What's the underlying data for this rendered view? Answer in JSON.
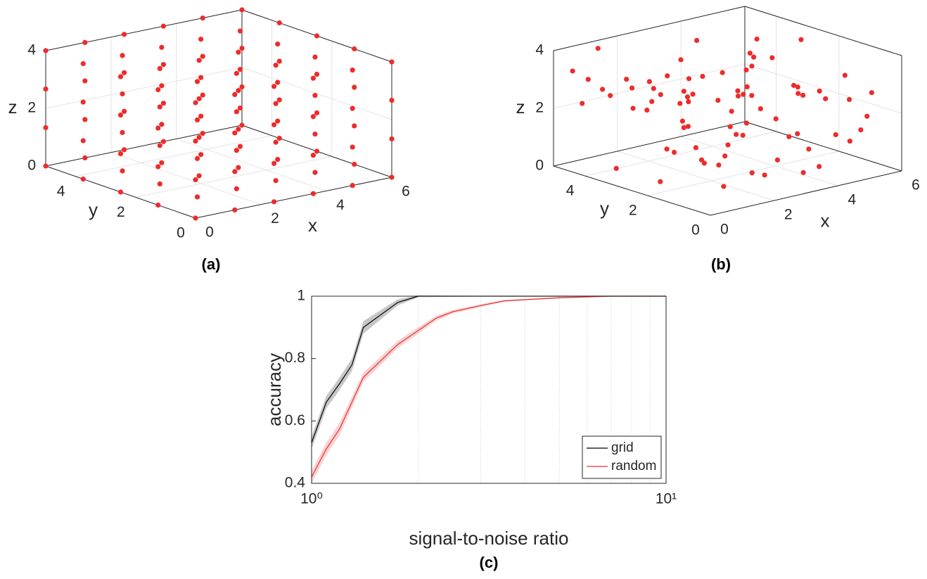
{
  "chart_data": [
    {
      "type": "scatter3d",
      "caption": "(a)",
      "xlabel": "x",
      "ylabel": "y",
      "zlabel": "z",
      "color": "#ee2b2b",
      "xlim": [
        0,
        6
      ],
      "ylim": [
        0,
        5
      ],
      "zlim": [
        0,
        4
      ],
      "xticks": [
        0,
        2,
        4,
        6
      ],
      "yticks": [
        0,
        2,
        4
      ],
      "zticks": [
        0,
        2,
        4
      ],
      "grid": true,
      "x": [
        0,
        0,
        0,
        0,
        0,
        0,
        0,
        0,
        0,
        0,
        0,
        0,
        0,
        0,
        0,
        0,
        0,
        0,
        0,
        0,
        1.2,
        1.2,
        1.2,
        1.2,
        1.2,
        1.2,
        1.2,
        1.2,
        1.2,
        1.2,
        1.2,
        1.2,
        1.2,
        1.2,
        1.2,
        1.2,
        1.2,
        1.2,
        1.2,
        1.2,
        2.4,
        2.4,
        2.4,
        2.4,
        2.4,
        2.4,
        2.4,
        2.4,
        2.4,
        2.4,
        2.4,
        2.4,
        2.4,
        2.4,
        2.4,
        2.4,
        2.4,
        2.4,
        2.4,
        2.4,
        3.6,
        3.6,
        3.6,
        3.6,
        3.6,
        3.6,
        3.6,
        3.6,
        3.6,
        3.6,
        3.6,
        3.6,
        3.6,
        3.6,
        3.6,
        3.6,
        3.6,
        3.6,
        3.6,
        3.6,
        4.8,
        4.8,
        4.8,
        4.8,
        4.8,
        4.8,
        4.8,
        4.8,
        4.8,
        4.8,
        4.8,
        4.8,
        4.8,
        4.8,
        4.8,
        4.8,
        4.8,
        4.8,
        4.8,
        4.8,
        6,
        6,
        6,
        6,
        6,
        6,
        6,
        6,
        6,
        6,
        6,
        6,
        6,
        6,
        6,
        6,
        6,
        6,
        6,
        6
      ],
      "y": [
        0,
        0,
        0,
        0,
        1.25,
        1.25,
        1.25,
        1.25,
        2.5,
        2.5,
        2.5,
        2.5,
        3.75,
        3.75,
        3.75,
        3.75,
        5,
        5,
        5,
        5,
        0,
        0,
        0,
        0,
        1.25,
        1.25,
        1.25,
        1.25,
        2.5,
        2.5,
        2.5,
        2.5,
        3.75,
        3.75,
        3.75,
        3.75,
        5,
        5,
        5,
        5,
        0,
        0,
        0,
        0,
        1.25,
        1.25,
        1.25,
        1.25,
        2.5,
        2.5,
        2.5,
        2.5,
        3.75,
        3.75,
        3.75,
        3.75,
        5,
        5,
        5,
        5,
        0,
        0,
        0,
        0,
        1.25,
        1.25,
        1.25,
        1.25,
        2.5,
        2.5,
        2.5,
        2.5,
        3.75,
        3.75,
        3.75,
        3.75,
        5,
        5,
        5,
        5,
        0,
        0,
        0,
        0,
        1.25,
        1.25,
        1.25,
        1.25,
        2.5,
        2.5,
        2.5,
        2.5,
        3.75,
        3.75,
        3.75,
        3.75,
        5,
        5,
        5,
        5,
        0,
        0,
        0,
        0,
        1.25,
        1.25,
        1.25,
        1.25,
        2.5,
        2.5,
        2.5,
        2.5,
        3.75,
        3.75,
        3.75,
        3.75,
        5,
        5,
        5,
        5
      ],
      "z": [
        0,
        1.33,
        2.67,
        4,
        0,
        1.33,
        2.67,
        4,
        0,
        1.33,
        2.67,
        4,
        0,
        1.33,
        2.67,
        4,
        0,
        1.33,
        2.67,
        4,
        0,
        1.33,
        2.67,
        4,
        0,
        1.33,
        2.67,
        4,
        0,
        1.33,
        2.67,
        4,
        0,
        1.33,
        2.67,
        4,
        0,
        1.33,
        2.67,
        4,
        0,
        1.33,
        2.67,
        4,
        0,
        1.33,
        2.67,
        4,
        0,
        1.33,
        2.67,
        4,
        0,
        1.33,
        2.67,
        4,
        0,
        1.33,
        2.67,
        4,
        0,
        1.33,
        2.67,
        4,
        0,
        1.33,
        2.67,
        4,
        0,
        1.33,
        2.67,
        4,
        0,
        1.33,
        2.67,
        4,
        0,
        1.33,
        2.67,
        4,
        0,
        1.33,
        2.67,
        4,
        0,
        1.33,
        2.67,
        4,
        0,
        1.33,
        2.67,
        4,
        0,
        1.33,
        2.67,
        4,
        0,
        1.33,
        2.67,
        4,
        0,
        1.33,
        2.67,
        4,
        0,
        1.33,
        2.67,
        4,
        0,
        1.33,
        2.67,
        4,
        0,
        1.33,
        2.67,
        4,
        0,
        1.33,
        2.67,
        4
      ]
    },
    {
      "type": "scatter3d",
      "caption": "(b)",
      "xlabel": "x",
      "ylabel": "y",
      "zlabel": "z",
      "color": "#ee2b2b",
      "xlim": [
        0,
        6
      ],
      "ylim": [
        0,
        5
      ],
      "zlim": [
        0,
        4
      ],
      "xticks": [
        0,
        2,
        4,
        6
      ],
      "yticks": [
        0,
        2,
        4
      ],
      "zticks": [
        0,
        2,
        4
      ],
      "grid": true,
      "x": [
        0.3,
        1.2,
        2.5,
        4.1,
        5.6,
        0.8,
        3.3,
        4.9,
        1.7,
        2.9,
        5.2,
        0.1,
        3.8,
        4.4,
        1.1,
        2.2,
        5.9,
        0.6,
        3.1,
        4.7,
        1.9,
        2.7,
        5.4,
        0.4,
        3.6,
        4.2,
        1.4,
        2.0,
        5.7,
        0.9,
        3.4,
        4.8,
        1.6,
        2.4,
        5.1,
        0.2,
        3.9,
        4.5,
        1.3,
        2.8,
        5.5,
        0.7,
        3.2,
        4.0,
        1.8,
        2.6,
        5.8,
        0.5,
        3.7,
        4.3,
        1.0,
        2.1,
        5.3,
        0.0,
        3.5,
        4.6,
        1.5,
        2.3,
        5.0,
        0.85,
        3.05,
        4.95,
        1.25,
        2.55,
        5.65,
        0.35,
        3.75,
        4.15,
        1.75,
        2.95,
        5.25,
        0.65,
        3.45,
        4.35,
        1.05,
        2.45,
        5.95,
        0.45,
        3.15,
        4.85
      ],
      "y": [
        4.2,
        1.5,
        3.1,
        0.7,
        2.8,
        4.9,
        2.2,
        3.6,
        0.4,
        1.9,
        4.4,
        2.6,
        0.9,
        3.3,
        4.7,
        1.2,
        2.0,
        3.8,
        0.2,
        4.1,
        2.9,
        1.6,
        3.4,
        0.6,
        4.6,
        2.3,
        1.0,
        3.9,
        0.8,
        2.5,
        4.3,
        1.4,
        3.0,
        0.3,
        4.8,
        1.8,
        2.7,
        3.7,
        0.5,
        4.0,
        1.3,
        2.1,
        3.5,
        4.5,
        0.1,
        2.4,
        1.1,
        4.9,
        3.2,
        0.7,
        1.7,
        4.6,
        2.6,
        3.0,
        0.9,
        1.9,
        4.2,
        2.8,
        3.6,
        0.4,
        1.5,
        4.4,
        2.0,
        3.3,
        0.6,
        1.2,
        4.7,
        2.9,
        3.8,
        0.2,
        2.2,
        4.1,
        1.0,
        3.1,
        0.8,
        4.3,
        1.6,
        2.4,
        3.9,
        0.5
      ],
      "z": [
        3.2,
        1.1,
        2.5,
        0.4,
        3.7,
        2.0,
        1.6,
        3.0,
        0.9,
        2.8,
        1.3,
        3.5,
        0.2,
        2.2,
        3.9,
        1.8,
        0.6,
        2.7,
        3.3,
        1.0,
        2.4,
        3.8,
        0.8,
        1.5,
        2.9,
        3.6,
        0.3,
        2.1,
        1.7,
        3.1,
        0.7,
        2.6,
        3.4,
        1.2,
        2.0,
        0.5,
        3.7,
        1.9,
        2.3,
        0.1,
        3.0,
        1.4,
        2.8,
        3.5,
        0.9,
        2.5,
        1.1,
        3.2,
        0.4,
        2.7,
        3.9,
        1.6,
        2.2,
        0.6,
        3.3,
        1.0,
        2.9,
        0.8,
        3.6,
        1.7,
        2.4,
        0.3,
        3.1,
        1.3,
        2.6,
        3.8,
        0.7,
        2.1,
        1.9,
        3.4,
        0.2,
        2.8,
        1.5,
        3.0,
        1.2,
        2.3,
        0.5,
        3.7,
        1.8,
        2.6
      ]
    },
    {
      "type": "line",
      "caption": "(c)",
      "xlabel": "signal-to-noise ratio",
      "ylabel": "accuracy",
      "xscale": "log",
      "xlim": [
        1,
        10
      ],
      "ylim": [
        0.4,
        1
      ],
      "xticks": [
        {
          "value": 1,
          "label": "10⁰"
        },
        {
          "value": 10,
          "label": "10¹"
        }
      ],
      "xminorticks": [
        2,
        3,
        4,
        5,
        6,
        7,
        8,
        9
      ],
      "minor_grid": true,
      "yticks": [
        0.4,
        0.6,
        0.8,
        1
      ],
      "legend": "lower right",
      "series": [
        {
          "name": "grid",
          "color": "#000000",
          "x": [
            1,
            1.1,
            1.2,
            1.3,
            1.4,
            1.75,
            2,
            3,
            10
          ],
          "values": [
            0.53,
            0.66,
            0.72,
            0.78,
            0.9,
            0.98,
            1,
            1,
            1
          ],
          "errors": [
            0.02,
            0.02,
            0.02,
            0.02,
            0.02,
            0.01,
            0.003,
            0.001,
            0.001
          ]
        },
        {
          "name": "random",
          "color": "#e83030",
          "x": [
            1,
            1.1,
            1.2,
            1.4,
            1.75,
            2.25,
            2.5,
            3,
            3.5,
            5,
            7,
            10
          ],
          "values": [
            0.42,
            0.51,
            0.575,
            0.74,
            0.845,
            0.93,
            0.95,
            0.97,
            0.985,
            0.995,
            1,
            1
          ],
          "errors": [
            0.02,
            0.02,
            0.02,
            0.015,
            0.012,
            0.008,
            0.006,
            0.004,
            0.003,
            0.002,
            0.001,
            0.001
          ]
        }
      ]
    }
  ]
}
